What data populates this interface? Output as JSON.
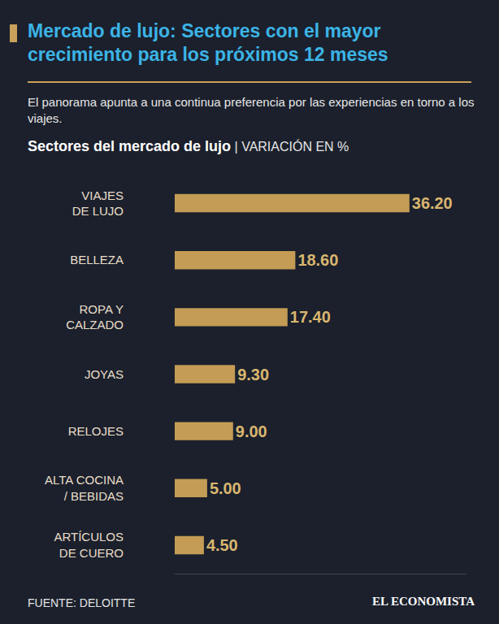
{
  "chart_data": {
    "type": "bar",
    "title": "Mercado de lujo: Sectores con el mayor crecimiento para los próximos 12 meses",
    "subtitle": "El panorama apunta a una continua preferencia por las experiencias en torno a los viajes.",
    "heading": "Sectores del mercado de lujo",
    "heading_unit": "| VARIACIÓN EN %",
    "source": "FUENTE: DELOITTE",
    "publisher": "EL ECONOMISTA",
    "orientation": "horizontal",
    "categories": [
      "VIAJES DE LUJO",
      "BELLEZA",
      "ROPA Y CALZADO",
      "JOYAS",
      "RELOJES",
      "ALTA COCINA / BEBIDAS",
      "ARTÍCULOS DE CUERO"
    ],
    "values": [
      36.2,
      18.6,
      17.4,
      9.3,
      9.0,
      5.0,
      4.5
    ],
    "value_labels": [
      "36.20",
      "18.60",
      "17.40",
      "9.30",
      "9.00",
      "5.00",
      "4.50"
    ],
    "data_labels": true,
    "color": "#c49c55",
    "xlim": [
      0,
      45
    ],
    "xticks": [],
    "tick_labels": "y",
    "grid": false
  }
}
